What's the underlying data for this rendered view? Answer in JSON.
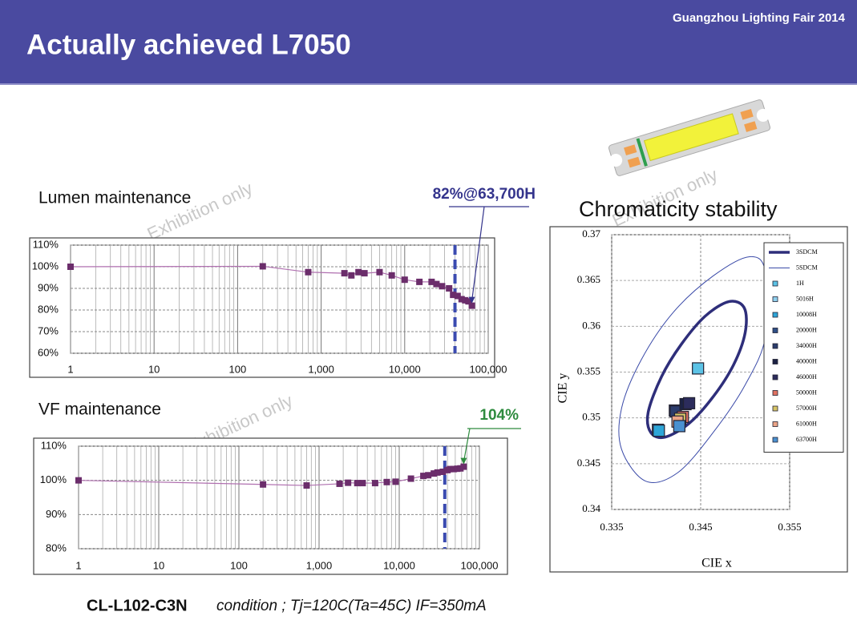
{
  "header": {
    "event": "Guangzhou Lighting Fair 2014",
    "title": "Actually achieved L7050"
  },
  "watermark": "Exhibition only",
  "footer": {
    "product": "CL-L102-C3N",
    "condition": "condition ; Tj=120C(Ta=45C) IF=350mA"
  },
  "chart_data": [
    {
      "type": "line",
      "title": "Lumen maintenance",
      "log_x": true,
      "grid": true,
      "minor_grid": true,
      "color": "#6b2d6b",
      "line_color": "#b070b0",
      "x": [
        1,
        200,
        700,
        1900,
        2300,
        2800,
        3300,
        5000,
        7000,
        10000,
        15000,
        21000,
        24000,
        28000,
        34000,
        38000,
        43000,
        48000,
        53000,
        58000,
        63700
      ],
      "values": [
        100,
        100.2,
        97.5,
        97,
        96,
        97.5,
        97,
        97.5,
        96,
        94,
        93,
        93,
        92,
        91,
        90,
        87,
        86.5,
        85,
        84.5,
        84,
        82
      ],
      "xlim": [
        1,
        100000
      ],
      "xticks": [
        1,
        10,
        100,
        {
          "value": 1000,
          "label": "1,000"
        },
        {
          "value": 10000,
          "label": "10,000"
        },
        {
          "value": 100000,
          "label": "100,000"
        }
      ],
      "ylim": [
        60,
        110
      ],
      "yticks": [
        {
          "value": 60,
          "label": "60%"
        },
        {
          "value": 70,
          "label": "70%"
        },
        {
          "value": 80,
          "label": "80%"
        },
        {
          "value": 90,
          "label": "90%"
        },
        {
          "value": 100,
          "label": "100%"
        },
        {
          "value": 110,
          "label": "110%"
        }
      ],
      "reference_x": 40000,
      "reference_color": "#3b4bb0",
      "annotation": {
        "text": "82%@63,700H",
        "color": "#34348c"
      }
    },
    {
      "type": "line",
      "title": "VF maintenance",
      "log_x": true,
      "grid": true,
      "minor_grid": true,
      "color": "#6b2d6b",
      "line_color": "#b070b0",
      "x": [
        1,
        200,
        700,
        1800,
        2300,
        3000,
        3500,
        5000,
        7000,
        9000,
        14000,
        20000,
        23000,
        27000,
        30000,
        35000,
        40000,
        43000,
        48000,
        53000,
        58000,
        63700
      ],
      "values": [
        100,
        98.8,
        98.5,
        99,
        99.3,
        99.2,
        99.2,
        99.2,
        99.5,
        99.6,
        100.5,
        101.3,
        101.5,
        102,
        102.3,
        102.5,
        103,
        103.3,
        103.3,
        103.4,
        103.5,
        104
      ],
      "xlim": [
        1,
        100000
      ],
      "xticks": [
        1,
        10,
        100,
        {
          "value": 1000,
          "label": "1,000"
        },
        {
          "value": 10000,
          "label": "10,000"
        },
        {
          "value": 100000,
          "label": "100,000"
        }
      ],
      "ylim": [
        80,
        110
      ],
      "yticks": [
        {
          "value": 80,
          "label": "80%"
        },
        {
          "value": 90,
          "label": "90%"
        },
        {
          "value": 100,
          "label": "100%"
        },
        {
          "value": 110,
          "label": "110%"
        }
      ],
      "reference_x": 37000,
      "reference_color": "#3b4bb0",
      "annotation": {
        "text": "104%",
        "color": "#2e8b3e"
      }
    },
    {
      "type": "scatter",
      "title": "Chromaticity stability",
      "x_label": "CIE x",
      "y_label": "CIE y",
      "grid": true,
      "legend": "upper right",
      "xlim": [
        0.335,
        0.355
      ],
      "xticks": [
        0.335,
        0.345,
        0.355
      ],
      "ylim": [
        0.34,
        0.37
      ],
      "yticks": [
        0.34,
        0.345,
        0.35,
        0.355,
        0.36,
        0.365,
        0.37
      ],
      "series": [
        {
          "name": "3SDCM",
          "style": "ellipse",
          "color": "#2e2e7a",
          "width": 3.5,
          "x": [
            0.3394,
            0.3391,
            0.3406,
            0.3428,
            0.3455,
            0.3482,
            0.3499,
            0.35,
            0.3487,
            0.3464,
            0.3437,
            0.341
          ],
          "y": [
            0.3484,
            0.3506,
            0.3545,
            0.358,
            0.3611,
            0.3627,
            0.362,
            0.3593,
            0.3558,
            0.3523,
            0.3494,
            0.3479
          ]
        },
        {
          "name": "5SDCM",
          "style": "ellipse",
          "color": "#3a4aa8",
          "width": 1,
          "x": [
            0.3361,
            0.3361,
            0.3383,
            0.3419,
            0.3464,
            0.3505,
            0.3523,
            0.3523,
            0.35,
            0.3464,
            0.3424,
            0.3388
          ],
          "y": [
            0.3466,
            0.351,
            0.3563,
            0.3615,
            0.3655,
            0.3676,
            0.3659,
            0.3589,
            0.3536,
            0.3484,
            0.344,
            0.3431
          ]
        },
        {
          "name": "1H",
          "style": "point",
          "color": "#5cc3e6",
          "x": [
            0.3447
          ],
          "y": [
            0.3554
          ]
        },
        {
          "name": "5016H",
          "style": "point",
          "color": "#8fd0ee",
          "x": [
            0.3402
          ],
          "y": [
            0.3487
          ]
        },
        {
          "name": "10008H",
          "style": "point",
          "color": "#2ea6d8",
          "x": [
            0.3403
          ],
          "y": [
            0.3486
          ]
        },
        {
          "name": "20000H",
          "style": "point",
          "color": "#2f4f86",
          "x": [
            0.3421
          ],
          "y": [
            0.3508
          ]
        },
        {
          "name": "34000H",
          "style": "point",
          "color": "#2b3c6c",
          "x": [
            0.3422
          ],
          "y": [
            0.3507
          ]
        },
        {
          "name": "40000H",
          "style": "point",
          "color": "#1c2244",
          "x": [
            0.3433
          ],
          "y": [
            0.3515
          ]
        },
        {
          "name": "46000H",
          "style": "point",
          "color": "#2c2c5c",
          "x": [
            0.3437
          ],
          "y": [
            0.3516
          ]
        },
        {
          "name": "50000H",
          "style": "point",
          "color": "#e07262",
          "x": [
            0.343
          ],
          "y": [
            0.3501
          ]
        },
        {
          "name": "57000H",
          "style": "point",
          "color": "#d6c466",
          "x": [
            0.3427
          ],
          "y": [
            0.3499
          ]
        },
        {
          "name": "61000H",
          "style": "point",
          "color": "#eba486",
          "x": [
            0.3424
          ],
          "y": [
            0.3496
          ]
        },
        {
          "name": "63700H",
          "style": "point",
          "color": "#4a90d0",
          "x": [
            0.3426
          ],
          "y": [
            0.3491
          ]
        }
      ]
    }
  ]
}
